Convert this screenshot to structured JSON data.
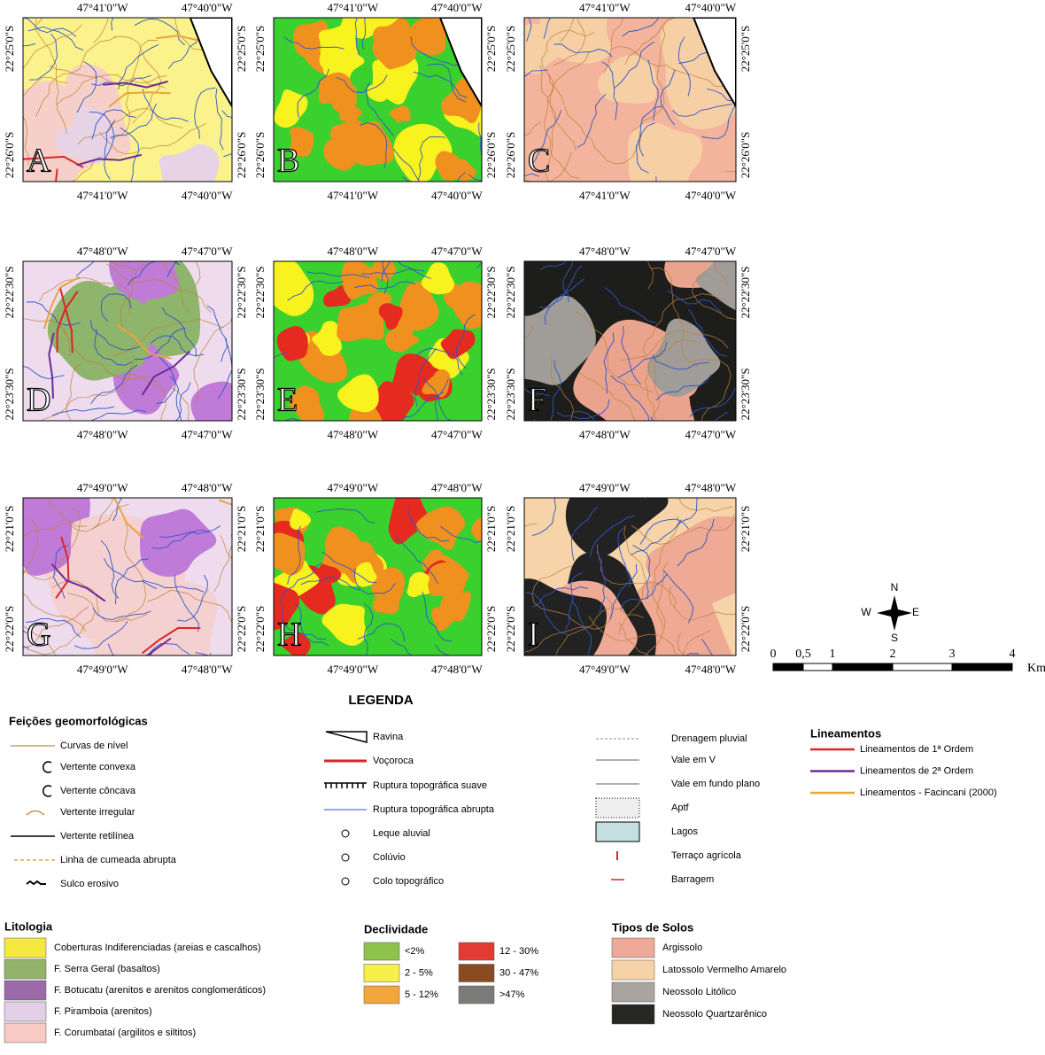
{
  "panels": {
    "rows": [
      {
        "lon": [
          "47°41'0\"W",
          "47°40'0\"W"
        ],
        "lat": [
          "22°25'0\"S",
          "22°26'0\"S"
        ],
        "letters": [
          "A",
          "B",
          "C"
        ]
      },
      {
        "lon": [
          "47°48'0\"W",
          "47°47'0\"W"
        ],
        "lat": [
          "22°22'30\"S",
          "22°23'30\"S"
        ],
        "letters": [
          "D",
          "E",
          "F"
        ]
      },
      {
        "lon": [
          "47°49'0\"W",
          "47°48'0\"W"
        ],
        "lat": [
          "22°21'0\"S",
          "22°22'0\"S"
        ],
        "letters": [
          "G",
          "H",
          "I"
        ]
      }
    ]
  },
  "compass": {
    "n": "N",
    "s": "S",
    "w": "W",
    "e": "E"
  },
  "scale": {
    "ticks": [
      "0",
      "0,5",
      "1",
      "2",
      "3",
      "4"
    ],
    "unit": "Km"
  },
  "legend": {
    "title": "LEGENDA",
    "geomorph": {
      "title": "Feições geomorfológicas",
      "items": [
        "Curvas de nível",
        "Vertente convexa",
        "Vertente côncava",
        "Vertente irregular",
        "Vertente retilínea",
        "Linha de cumeada abrupta",
        "Sulco erosivo"
      ]
    },
    "features": {
      "items": [
        "Ravina",
        "Voçoroca",
        "Ruptura topográfica suave",
        "Ruptura topográfica abrupta",
        "Leque aluvial",
        "Colúvio",
        "Colo topográfico"
      ]
    },
    "hydro": {
      "items": [
        "Drenagem pluvial",
        "Vale em V",
        "Vale em fundo plano",
        "Aptf",
        "Lagos",
        "Terraço agrícola",
        "Barragem"
      ]
    },
    "lineaments": {
      "title": "Lineamentos",
      "items": [
        {
          "label": "Lineamentos de 1ª Ordem",
          "color": "#d9262c"
        },
        {
          "label": "Lineamentos de 2ª Ordem",
          "color": "#6a2a9c"
        },
        {
          "label": "Lineamentos - Facincani (2000)",
          "color": "#e9a43c"
        }
      ]
    },
    "lithology": {
      "title": "Litologia",
      "items": [
        {
          "label": "Coberturas Indiferenciadas (areias e cascalhos)",
          "color": "#f5e93f"
        },
        {
          "label": "F. Serra Geral (basaltos)",
          "color": "#93b26b"
        },
        {
          "label": "F. Botucatu (arenitos e arenitos conglomeráticos)",
          "color": "#9b6aa8"
        },
        {
          "label": "F. Piramboia (arenitos)",
          "color": "#e3d0e6"
        },
        {
          "label": "F. Corumbataí (argilitos e siltitos)",
          "color": "#f7cac4"
        }
      ]
    },
    "slope": {
      "title": "Declividade",
      "items": [
        {
          "label": "<2%",
          "color": "#8dc34a"
        },
        {
          "label": "2 - 5%",
          "color": "#f8f04a"
        },
        {
          "label": "5 - 12%",
          "color": "#f3a53a"
        },
        {
          "label": "12 - 30%",
          "color": "#e33b33"
        },
        {
          "label": "30 - 47%",
          "color": "#8a4b22"
        },
        {
          "label": ">47%",
          "color": "#7d7b79"
        }
      ]
    },
    "soils": {
      "title": "Tipos de Solos",
      "items": [
        {
          "label": "Argissolo",
          "color": "#eea998"
        },
        {
          "label": "Latossolo Vermelho Amarelo",
          "color": "#f6d3a6"
        },
        {
          "label": "Neossolo Litólico",
          "color": "#aaa4a0"
        },
        {
          "label": "Neossolo Quartzarênico",
          "color": "#262624"
        }
      ]
    }
  }
}
